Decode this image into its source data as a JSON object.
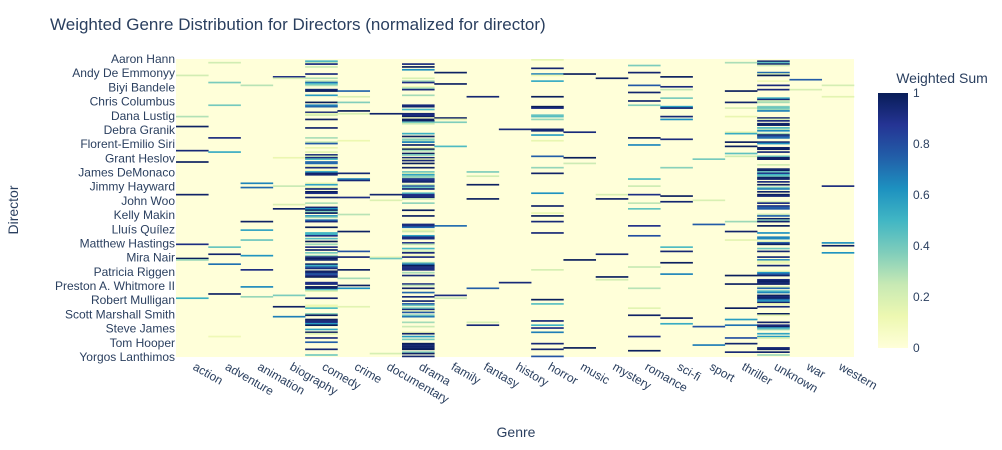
{
  "chart_data": {
    "type": "heatmap",
    "title": "Weighted Genre Distribution for Directors (normalized for director)",
    "xlabel": "Genre",
    "ylabel": "Director",
    "colorbar_title": "Weighted Sum",
    "x_categories": [
      "action",
      "adventure",
      "animation",
      "biography",
      "comedy",
      "crime",
      "documentary",
      "drama",
      "family",
      "fantasy",
      "history",
      "horror",
      "music",
      "mystery",
      "romance",
      "sci-fi",
      "sport",
      "thriller",
      "unknown",
      "war",
      "western"
    ],
    "y_tick_labels": [
      "Aaron Hann",
      "Andy De Emmonyy",
      "Biyi Bandele",
      "Chris Columbus",
      "Dana Lustig",
      "Debra Granik",
      "Florent-Emilio Siri",
      "Grant Heslov",
      "James DeMonaco",
      "Jimmy Hayward",
      "John Woo",
      "Kelly Makin",
      "Lluís Quílez",
      "Matthew Hastings",
      "Mira Nair",
      "Patricia Riggen",
      "Preston A. Whitmore II",
      "Robert Mulligan",
      "Scott Marshall Smith",
      "Steve James",
      "Tom Hooper",
      "Yorgos Lanthimos"
    ],
    "n_rows": 210,
    "zlim": [
      0,
      1
    ],
    "colorbar_ticks": [
      "0",
      "0.2",
      "0.4",
      "0.6",
      "0.8",
      "1"
    ],
    "colorscale": [
      "#ffffd9",
      "#edf8b1",
      "#c7e9b4",
      "#7fcdbb",
      "#41b6c4",
      "#1d91c0",
      "#225ea8",
      "#253494",
      "#081d58"
    ],
    "column_density": [
      0.06,
      0.04,
      0.03,
      0.05,
      0.45,
      0.1,
      0.02,
      0.45,
      0.04,
      0.03,
      0.02,
      0.15,
      0.03,
      0.02,
      0.1,
      0.07,
      0.02,
      0.09,
      0.55,
      0.02,
      0.03
    ],
    "seed": 20240917
  }
}
